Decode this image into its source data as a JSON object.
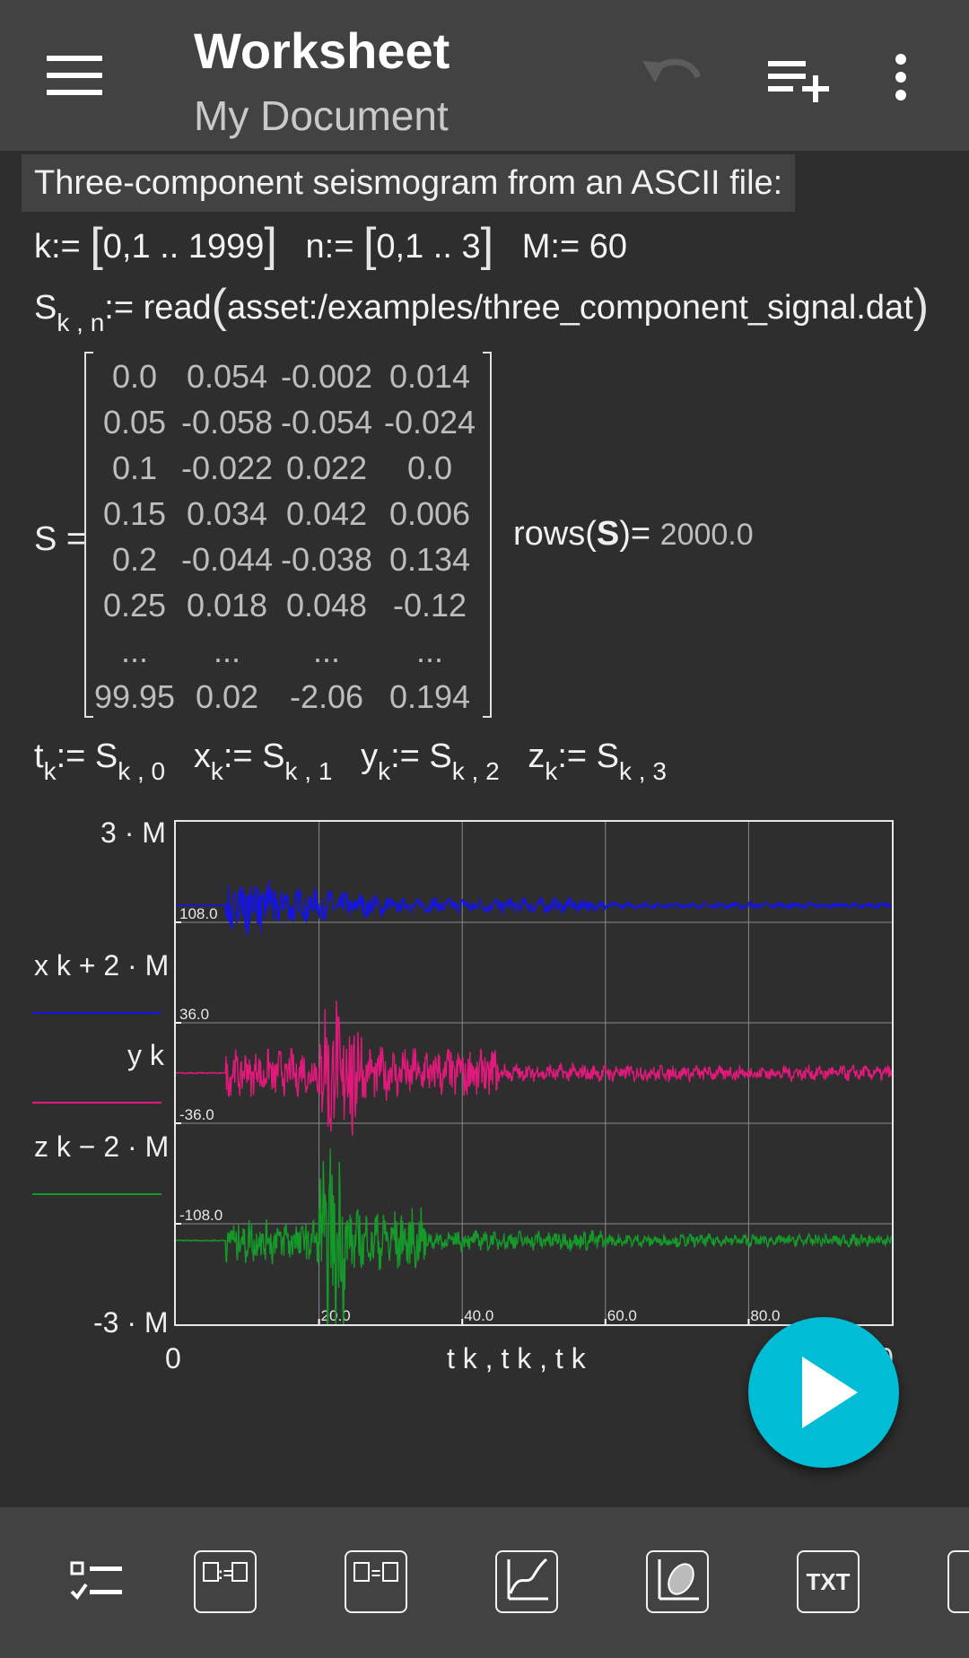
{
  "appbar": {
    "title": "Worksheet",
    "subtitle": "My Document",
    "icons": [
      "menu-icon",
      "undo-icon",
      "add-list-icon",
      "overflow-menu-icon"
    ]
  },
  "worksheet": {
    "text_cell": "Three-component seismogram from an ASCII file:",
    "defs": {
      "k_range_start": "0,1",
      "k_range_end": "1999",
      "n_range_start": "0,1",
      "n_range_end": "3",
      "M_value": "60"
    },
    "read_expr": {
      "path": "asset:/examples/three_component_signal.dat"
    },
    "matrix": {
      "label": "S =",
      "rows": [
        [
          "0.0",
          "0.054",
          "-0.002",
          "0.014"
        ],
        [
          "0.05",
          "-0.058",
          "-0.054",
          "-0.024"
        ],
        [
          "0.1",
          "-0.022",
          "0.022",
          "0.0"
        ],
        [
          "0.15",
          "0.034",
          "0.042",
          "0.006"
        ],
        [
          "0.2",
          "-0.044",
          "-0.038",
          "0.134"
        ],
        [
          "0.25",
          "0.018",
          "0.048",
          "-0.12"
        ],
        [
          "...",
          "...",
          "...",
          "..."
        ],
        [
          "99.95",
          "0.02",
          "-2.06",
          "0.194"
        ]
      ]
    },
    "rows_result": "2000.0"
  },
  "chart_data": {
    "type": "line",
    "xlim": [
      0,
      100
    ],
    "ylim": [
      -180,
      180
    ],
    "y_top_label": "3 · M",
    "y_bottom_label": "-3 · M",
    "x_min_label": "0",
    "x_max_label_partial": "0",
    "xlabel": "t k , t k , t k",
    "x_ticks": [
      "20.0",
      "40.0",
      "60.0",
      "80.0"
    ],
    "y_ticks": [
      "108.0",
      "36.0",
      "-36.0",
      "-108.0"
    ],
    "series": [
      {
        "name": "x k + 2 · M",
        "color": "#1414e6",
        "offset": 120
      },
      {
        "name": "y k",
        "color": "#e0197a",
        "offset": 0
      },
      {
        "name": "z k − 2 · M",
        "color": "#159a2a",
        "offset": -120
      }
    ]
  },
  "fab": {
    "icon": "play-icon"
  },
  "toolbar": {
    "items": [
      "checklist-icon",
      "definition-icon",
      "equation-icon",
      "plot-icon",
      "3d-plot-icon",
      "TXT",
      "image-icon"
    ]
  }
}
